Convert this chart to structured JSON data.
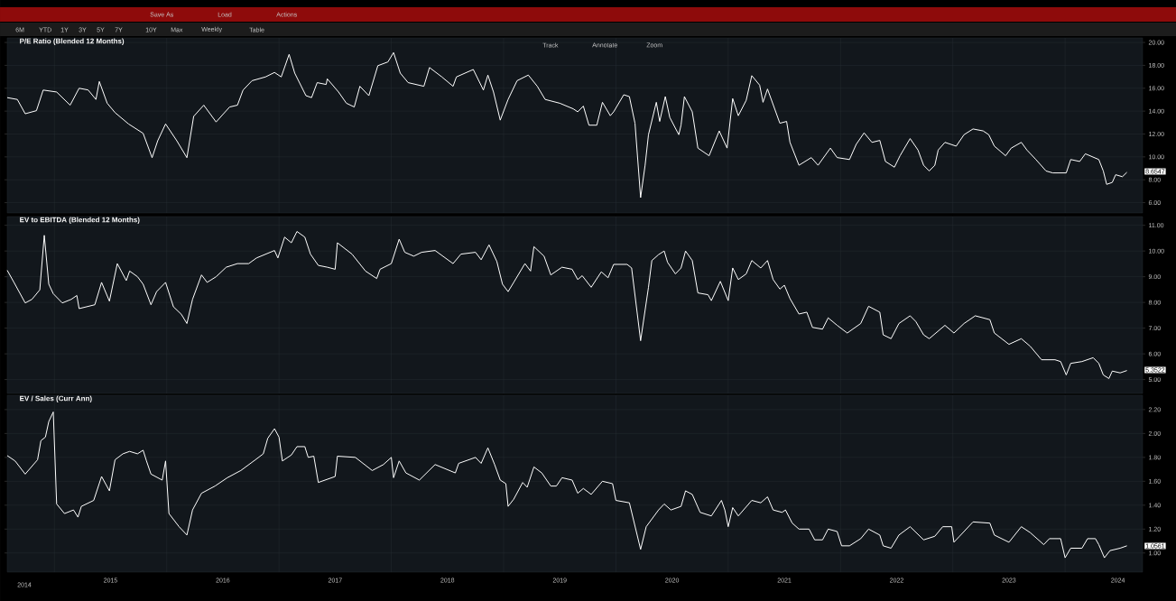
{
  "chart_data": [
    {
      "type": "line",
      "title": "P/E Ratio (Blended 12 Months)",
      "color": "#ffffff",
      "grid": true,
      "tick_labels": "y",
      "xlim": [
        2014.58,
        2024.69
      ],
      "ylim": [
        5.1,
        20.4
      ],
      "xticks": [
        2015,
        2016,
        2017,
        2018,
        2019,
        2020,
        2021,
        2022,
        2023,
        2024
      ],
      "yticks": [
        {
          "value": 6,
          "label": "6.00"
        },
        {
          "value": 8,
          "label": "8.00"
        },
        {
          "value": 10,
          "label": "10.00"
        },
        {
          "value": 12,
          "label": "12.00"
        },
        {
          "value": 14,
          "label": "14.00"
        },
        {
          "value": 16,
          "label": "16.00"
        },
        {
          "value": 18,
          "label": "18.00"
        },
        {
          "value": 20,
          "label": "20.00"
        }
      ],
      "x": [
        2014.58,
        2014.67,
        2014.74,
        2014.84,
        2014.9,
        2015.02,
        2015.14,
        2015.22,
        2015.3,
        2015.37,
        2015.4,
        2015.47,
        2015.54,
        2015.66,
        2015.79,
        2015.87,
        2015.92,
        2015.99,
        2016.09,
        2016.18,
        2016.24,
        2016.33,
        2016.44,
        2016.56,
        2016.63,
        2016.68,
        2016.76,
        2016.88,
        2016.96,
        2017.02,
        2017.09,
        2017.14,
        2017.24,
        2017.29,
        2017.34,
        2017.42,
        2017.43,
        2017.53,
        2017.6,
        2017.67,
        2017.72,
        2017.8,
        2017.88,
        2017.97,
        2018.02,
        2018.08,
        2018.15,
        2018.29,
        2018.34,
        2018.45,
        2018.55,
        2018.58,
        2018.73,
        2018.82,
        2018.86,
        2018.91,
        2018.97,
        2019.04,
        2019.12,
        2019.22,
        2019.3,
        2019.37,
        2019.5,
        2019.62,
        2019.66,
        2019.71,
        2019.76,
        2019.83,
        2019.88,
        2019.95,
        2019.98,
        2020.07,
        2020.12,
        2020.17,
        2020.22,
        2020.26,
        2020.29,
        2020.36,
        2020.39,
        2020.44,
        2020.48,
        2020.56,
        2020.58,
        2020.61,
        2020.68,
        2020.73,
        2020.83,
        2020.92,
        2020.99,
        2021.04,
        2021.09,
        2021.16,
        2021.21,
        2021.28,
        2021.31,
        2021.35,
        2021.46,
        2021.52,
        2021.55,
        2021.63,
        2021.74,
        2021.8,
        2021.91,
        2021.97,
        2022.08,
        2022.14,
        2022.21,
        2022.28,
        2022.35,
        2022.4,
        2022.48,
        2022.53,
        2022.62,
        2022.69,
        2022.74,
        2022.79,
        2022.84,
        2022.87,
        2022.93,
        2023.03,
        2023.1,
        2023.18,
        2023.27,
        2023.32,
        2023.37,
        2023.47,
        2023.52,
        2023.61,
        2023.66,
        2023.74,
        2023.83,
        2023.89,
        2024.01,
        2024.05,
        2024.13,
        2024.18,
        2024.3,
        2024.34,
        2024.37,
        2024.42,
        2024.45,
        2024.51,
        2024.55
      ],
      "values": [
        15.18,
        15.02,
        13.77,
        14.04,
        15.84,
        15.67,
        14.52,
        16.0,
        15.85,
        15.02,
        16.59,
        14.69,
        13.87,
        12.88,
        12.06,
        9.93,
        11.41,
        12.88,
        11.41,
        9.93,
        13.54,
        14.52,
        13.05,
        14.36,
        14.52,
        15.84,
        16.66,
        16.99,
        17.38,
        16.99,
        18.96,
        17.32,
        15.35,
        15.18,
        16.49,
        16.33,
        16.82,
        15.67,
        14.69,
        14.36,
        16.17,
        15.35,
        17.97,
        18.3,
        19.12,
        17.32,
        16.49,
        16.17,
        17.81,
        16.99,
        16.17,
        16.99,
        17.64,
        15.84,
        17.15,
        15.67,
        13.21,
        15.02,
        16.66,
        17.15,
        16.17,
        15.02,
        14.69,
        14.2,
        13.94,
        14.44,
        12.77,
        12.77,
        14.77,
        13.6,
        13.94,
        15.43,
        15.27,
        12.94,
        6.44,
        9.27,
        11.94,
        14.77,
        13.1,
        15.27,
        13.44,
        11.94,
        12.77,
        15.27,
        13.94,
        10.77,
        10.1,
        12.27,
        10.77,
        15.1,
        13.6,
        14.94,
        17.1,
        16.27,
        14.77,
        15.93,
        12.94,
        13.1,
        11.27,
        9.27,
        9.94,
        9.27,
        10.77,
        9.94,
        9.77,
        11.1,
        12.1,
        11.27,
        11.44,
        9.6,
        9.1,
        10.1,
        11.6,
        10.6,
        9.27,
        8.77,
        9.27,
        10.6,
        11.27,
        10.94,
        11.94,
        12.44,
        12.27,
        11.94,
        10.94,
        10.1,
        10.77,
        11.27,
        10.6,
        9.77,
        8.77,
        8.6,
        8.6,
        9.77,
        9.6,
        10.27,
        9.77,
        8.77,
        7.6,
        7.77,
        8.44,
        8.27,
        8.65
      ],
      "annotations": [
        "Save As",
        "Load",
        "Actions",
        "6M",
        "YTD",
        "1Y",
        "3Y",
        "5Y",
        "7Y",
        "10Y",
        "Max",
        "Weekly",
        "Table",
        "Track",
        "Annotate",
        "Zoom",
        "8.6547"
      ]
    },
    {
      "type": "line",
      "title": "EV to EBITDA (Blended 12 Months)",
      "color": "#ffffff",
      "grid": true,
      "tick_labels": "y",
      "xlim": [
        2014.58,
        2024.69
      ],
      "ylim": [
        4.46,
        11.34
      ],
      "xticks": [
        2015,
        2016,
        2017,
        2018,
        2019,
        2020,
        2021,
        2022,
        2023,
        2024
      ],
      "yticks": [
        {
          "value": 5,
          "label": "5.00"
        },
        {
          "value": 6,
          "label": "6.00"
        },
        {
          "value": 7,
          "label": "7.00"
        },
        {
          "value": 8,
          "label": "8.00"
        },
        {
          "value": 9,
          "label": "9.00"
        },
        {
          "value": 10,
          "label": "10.00"
        },
        {
          "value": 11,
          "label": "11.00"
        }
      ],
      "x": [
        2014.58,
        2014.64,
        2014.74,
        2014.8,
        2014.87,
        2014.91,
        2014.95,
        2014.99,
        2015.07,
        2015.15,
        2015.2,
        2015.22,
        2015.36,
        2015.42,
        2015.49,
        2015.56,
        2015.64,
        2015.67,
        2015.74,
        2015.79,
        2015.86,
        2015.91,
        2015.99,
        2016.06,
        2016.13,
        2016.18,
        2016.23,
        2016.31,
        2016.36,
        2016.44,
        2016.53,
        2016.63,
        2016.73,
        2016.8,
        2016.96,
        2016.99,
        2017.05,
        2017.11,
        2017.16,
        2017.23,
        2017.28,
        2017.35,
        2017.43,
        2017.5,
        2017.52,
        2017.65,
        2017.77,
        2017.87,
        2017.9,
        2018.0,
        2018.07,
        2018.12,
        2018.2,
        2018.27,
        2018.39,
        2018.55,
        2018.62,
        2018.75,
        2018.8,
        2018.87,
        2018.94,
        2018.99,
        2019.04,
        2019.09,
        2019.19,
        2019.24,
        2019.27,
        2019.36,
        2019.42,
        2019.52,
        2019.61,
        2019.66,
        2019.7,
        2019.78,
        2019.87,
        2019.93,
        2019.98,
        2020.1,
        2020.14,
        2020.22,
        2020.29,
        2020.32,
        2020.38,
        2020.43,
        2020.46,
        2020.53,
        2020.58,
        2020.62,
        2020.68,
        2020.73,
        2020.82,
        2020.85,
        2020.93,
        2021.0,
        2021.04,
        2021.09,
        2021.16,
        2021.21,
        2021.29,
        2021.35,
        2021.4,
        2021.46,
        2021.5,
        2021.55,
        2021.63,
        2021.7,
        2021.75,
        2021.84,
        2021.89,
        2021.97,
        2022.06,
        2022.18,
        2022.25,
        2022.35,
        2022.38,
        2022.45,
        2022.52,
        2022.62,
        2022.67,
        2022.74,
        2022.79,
        2022.93,
        2023.01,
        2023.1,
        2023.2,
        2023.33,
        2023.37,
        2023.5,
        2023.61,
        2023.69,
        2023.79,
        2023.91,
        2023.96,
        2024.01,
        2024.05,
        2024.15,
        2024.25,
        2024.3,
        2024.34,
        2024.39,
        2024.42,
        2024.49,
        2024.55
      ],
      "values": [
        9.25,
        8.78,
        7.98,
        8.12,
        8.49,
        10.61,
        8.71,
        8.34,
        7.98,
        8.12,
        8.27,
        7.76,
        7.91,
        8.78,
        8.05,
        9.51,
        8.85,
        9.22,
        9.0,
        8.71,
        7.91,
        8.42,
        8.78,
        7.83,
        7.54,
        7.18,
        8.12,
        9.07,
        8.78,
        9.0,
        9.37,
        9.51,
        9.51,
        9.73,
        10.02,
        9.73,
        10.54,
        10.32,
        10.76,
        10.54,
        9.88,
        9.44,
        9.37,
        9.29,
        10.32,
        9.88,
        9.22,
        8.93,
        9.29,
        9.51,
        10.46,
        9.95,
        9.8,
        9.95,
        10.02,
        9.51,
        9.88,
        9.95,
        9.66,
        10.24,
        9.59,
        8.71,
        8.42,
        8.78,
        9.51,
        9.22,
        10.17,
        9.8,
        9.07,
        9.37,
        9.29,
        8.89,
        9.04,
        8.59,
        9.19,
        8.96,
        9.48,
        9.48,
        9.34,
        6.51,
        8.59,
        9.63,
        9.86,
        10.0,
        9.56,
        9.11,
        9.34,
        10.0,
        9.63,
        8.37,
        8.3,
        8.07,
        8.82,
        8.07,
        9.34,
        8.89,
        9.11,
        9.63,
        9.34,
        9.63,
        8.89,
        8.52,
        8.67,
        8.15,
        7.55,
        7.62,
        7.03,
        6.96,
        7.4,
        7.11,
        6.81,
        7.18,
        7.85,
        7.62,
        6.74,
        6.59,
        7.18,
        7.48,
        7.26,
        6.74,
        6.59,
        7.11,
        6.81,
        7.18,
        7.48,
        7.33,
        6.81,
        6.37,
        6.59,
        6.29,
        5.77,
        5.77,
        5.7,
        5.18,
        5.63,
        5.7,
        5.85,
        5.63,
        5.18,
        5.04,
        5.33,
        5.26,
        5.35
      ],
      "annotations": [
        "5.3522"
      ]
    },
    {
      "type": "line",
      "title": "EV / Sales (Curr Ann)",
      "color": "#ffffff",
      "grid": true,
      "xlim": [
        2014.58,
        2024.69
      ],
      "ylim": [
        0.84,
        2.32
      ],
      "xticks": [
        {
          "value": 2015,
          "label": null
        },
        {
          "value": 2015.5,
          "label": "2015"
        },
        {
          "value": 2016,
          "label": null
        },
        {
          "value": 2016.5,
          "label": "2016"
        },
        {
          "value": 2017,
          "label": null
        },
        {
          "value": 2017.5,
          "label": "2017"
        },
        {
          "value": 2018,
          "label": null
        },
        {
          "value": 2018.5,
          "label": "2018"
        },
        {
          "value": 2019,
          "label": null
        },
        {
          "value": 2019.5,
          "label": "2019"
        },
        {
          "value": 2020,
          "label": null
        },
        {
          "value": 2020.5,
          "label": "2020"
        },
        {
          "value": 2021,
          "label": null
        },
        {
          "value": 2021.5,
          "label": "2021"
        },
        {
          "value": 2022,
          "label": null
        },
        {
          "value": 2022.5,
          "label": "2022"
        },
        {
          "value": 2023,
          "label": null
        },
        {
          "value": 2023.5,
          "label": "2023"
        },
        {
          "value": 2024,
          "label": null
        },
        {
          "value": 2024.47,
          "label": "2024"
        }
      ],
      "yticks": [
        {
          "value": 1.0,
          "label": "1.00"
        },
        {
          "value": 1.2,
          "label": "1.20"
        },
        {
          "value": 1.4,
          "label": "1.40"
        },
        {
          "value": 1.6,
          "label": "1.60"
        },
        {
          "value": 1.8,
          "label": "1.80"
        },
        {
          "value": 2.0,
          "label": "2.00"
        },
        {
          "value": 2.2,
          "label": "2.20"
        }
      ],
      "x": [
        2014.58,
        2014.65,
        2014.74,
        2014.85,
        2014.88,
        2014.92,
        2014.95,
        2014.99,
        2015.02,
        2015.09,
        2015.17,
        2015.21,
        2015.24,
        2015.35,
        2015.42,
        2015.49,
        2015.54,
        2015.61,
        2015.67,
        2015.74,
        2015.79,
        2015.82,
        2015.86,
        2015.96,
        2015.99,
        2016.02,
        2016.11,
        2016.18,
        2016.23,
        2016.31,
        2016.43,
        2016.54,
        2016.66,
        2016.79,
        2016.86,
        2016.9,
        2016.96,
        2017.0,
        2017.03,
        2017.11,
        2017.16,
        2017.23,
        2017.26,
        2017.31,
        2017.35,
        2017.5,
        2017.52,
        2017.68,
        2017.83,
        2017.93,
        2018.0,
        2018.02,
        2018.07,
        2018.13,
        2018.25,
        2018.39,
        2018.57,
        2018.6,
        2018.75,
        2018.8,
        2018.86,
        2018.92,
        2018.97,
        2019.02,
        2019.04,
        2019.09,
        2019.17,
        2019.21,
        2019.27,
        2019.34,
        2019.42,
        2019.47,
        2019.52,
        2019.61,
        2019.66,
        2019.71,
        2019.78,
        2019.88,
        2019.97,
        2020.0,
        2020.12,
        2020.22,
        2020.27,
        2020.38,
        2020.43,
        2020.49,
        2020.58,
        2020.62,
        2020.68,
        2020.75,
        2020.85,
        2020.94,
        2020.97,
        2021.0,
        2021.04,
        2021.09,
        2021.21,
        2021.29,
        2021.35,
        2021.4,
        2021.48,
        2021.51,
        2021.57,
        2021.63,
        2021.72,
        2021.77,
        2021.84,
        2021.89,
        2021.97,
        2022.01,
        2022.08,
        2022.18,
        2022.25,
        2022.35,
        2022.38,
        2022.45,
        2022.52,
        2022.62,
        2022.74,
        2022.84,
        2022.91,
        2022.99,
        2023.01,
        2023.06,
        2023.18,
        2023.33,
        2023.37,
        2023.5,
        2023.61,
        2023.69,
        2023.81,
        2023.86,
        2023.96,
        2024.0,
        2024.05,
        2024.15,
        2024.2,
        2024.27,
        2024.3,
        2024.35,
        2024.4,
        2024.49,
        2024.55
      ],
      "values": [
        1.815,
        1.77,
        1.66,
        1.78,
        1.94,
        1.97,
        2.1,
        2.18,
        1.41,
        1.33,
        1.36,
        1.3,
        1.39,
        1.44,
        1.64,
        1.52,
        1.78,
        1.83,
        1.85,
        1.83,
        1.86,
        1.77,
        1.66,
        1.61,
        1.77,
        1.33,
        1.22,
        1.15,
        1.36,
        1.5,
        1.56,
        1.63,
        1.69,
        1.78,
        1.83,
        1.96,
        2.04,
        1.97,
        1.77,
        1.82,
        1.89,
        1.89,
        1.8,
        1.81,
        1.59,
        1.64,
        1.81,
        1.8,
        1.69,
        1.74,
        1.8,
        1.63,
        1.77,
        1.67,
        1.61,
        1.74,
        1.67,
        1.75,
        1.8,
        1.75,
        1.88,
        1.74,
        1.61,
        1.58,
        1.39,
        1.45,
        1.59,
        1.55,
        1.72,
        1.67,
        1.56,
        1.56,
        1.63,
        1.61,
        1.5,
        1.54,
        1.49,
        1.6,
        1.58,
        1.44,
        1.42,
        1.03,
        1.22,
        1.36,
        1.41,
        1.36,
        1.39,
        1.52,
        1.49,
        1.34,
        1.31,
        1.44,
        1.36,
        1.22,
        1.38,
        1.31,
        1.44,
        1.42,
        1.47,
        1.36,
        1.34,
        1.36,
        1.25,
        1.2,
        1.2,
        1.11,
        1.11,
        1.2,
        1.18,
        1.06,
        1.06,
        1.12,
        1.2,
        1.15,
        1.06,
        1.04,
        1.15,
        1.22,
        1.11,
        1.14,
        1.22,
        1.22,
        1.09,
        1.14,
        1.26,
        1.25,
        1.15,
        1.09,
        1.22,
        1.17,
        1.07,
        1.12,
        1.12,
        0.96,
        1.04,
        1.04,
        1.12,
        1.12,
        1.07,
        0.96,
        1.02,
        1.04,
        1.06
      ],
      "annotations": [
        "2014",
        "1.0561"
      ]
    }
  ]
}
